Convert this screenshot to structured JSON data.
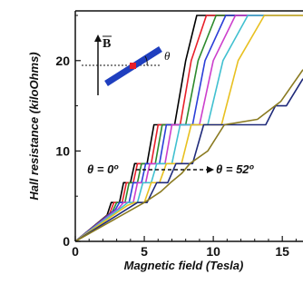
{
  "chart_data": {
    "type": "line",
    "xlabel": "Magnetic field (Tesla)",
    "ylabel": "Hall resistance (kiloOhms)",
    "xlim": [
      0,
      16.5
    ],
    "ylim": [
      0,
      25.5
    ],
    "x_ticks": [
      "0",
      "5",
      "10",
      "15"
    ],
    "y_ticks": [
      "0",
      "10",
      "20"
    ],
    "x_tick_values": [
      0,
      5,
      10,
      15
    ],
    "y_tick_values": [
      0,
      10,
      20
    ],
    "grid": false,
    "annotations": {
      "theta_start": "θ = 0º",
      "theta_end": "θ = 52º",
      "inset_field": "B",
      "inset_angle": "θ"
    },
    "series": [
      {
        "color": "#000000",
        "points": [
          [
            0,
            0
          ],
          [
            2.3,
            2.9
          ],
          [
            2.6,
            4.3
          ],
          [
            3.2,
            4.3
          ],
          [
            3.5,
            6.5
          ],
          [
            4.0,
            6.5
          ],
          [
            4.3,
            8.6
          ],
          [
            5.2,
            8.6
          ],
          [
            5.7,
            12.9
          ],
          [
            7.2,
            12.9
          ],
          [
            8.0,
            20.0
          ],
          [
            8.8,
            25.0
          ],
          [
            16.5,
            25.0
          ]
        ]
      },
      {
        "color": "#e8202a",
        "points": [
          [
            0,
            0
          ],
          [
            2.5,
            3.1
          ],
          [
            2.8,
            4.3
          ],
          [
            3.4,
            4.3
          ],
          [
            3.7,
            6.5
          ],
          [
            4.2,
            6.5
          ],
          [
            4.5,
            8.6
          ],
          [
            5.5,
            8.6
          ],
          [
            6.0,
            12.9
          ],
          [
            7.6,
            12.9
          ],
          [
            8.4,
            20.0
          ],
          [
            9.5,
            25.0
          ],
          [
            16.5,
            25.0
          ]
        ]
      },
      {
        "color": "#2d8a2d",
        "points": [
          [
            0,
            0
          ],
          [
            2.7,
            3.3
          ],
          [
            3.0,
            4.3
          ],
          [
            3.6,
            4.3
          ],
          [
            3.9,
            6.5
          ],
          [
            4.5,
            6.5
          ],
          [
            4.8,
            8.6
          ],
          [
            5.8,
            8.6
          ],
          [
            6.3,
            12.9
          ],
          [
            8.0,
            12.9
          ],
          [
            8.9,
            20.0
          ],
          [
            10.2,
            25.0
          ],
          [
            16.5,
            25.0
          ]
        ]
      },
      {
        "color": "#2b3fd8",
        "points": [
          [
            0,
            0
          ],
          [
            2.9,
            3.5
          ],
          [
            3.2,
            4.3
          ],
          [
            3.9,
            4.3
          ],
          [
            4.2,
            6.5
          ],
          [
            4.8,
            6.5
          ],
          [
            5.1,
            8.6
          ],
          [
            6.1,
            8.6
          ],
          [
            6.6,
            12.9
          ],
          [
            8.5,
            12.9
          ],
          [
            9.4,
            20.0
          ],
          [
            10.9,
            25.0
          ],
          [
            16.5,
            25.0
          ]
        ]
      },
      {
        "color": "#cc3fcc",
        "points": [
          [
            0,
            0
          ],
          [
            3.1,
            3.6
          ],
          [
            3.5,
            4.3
          ],
          [
            4.2,
            4.3
          ],
          [
            4.5,
            6.5
          ],
          [
            5.1,
            6.5
          ],
          [
            5.4,
            8.6
          ],
          [
            6.5,
            8.6
          ],
          [
            7.0,
            12.9
          ],
          [
            9.0,
            12.9
          ],
          [
            10.0,
            20.0
          ],
          [
            11.6,
            25.0
          ],
          [
            16.5,
            25.0
          ]
        ]
      },
      {
        "color": "#40c0d0",
        "points": [
          [
            0,
            0
          ],
          [
            3.4,
            3.8
          ],
          [
            3.8,
            4.3
          ],
          [
            4.5,
            4.3
          ],
          [
            4.9,
            6.5
          ],
          [
            5.5,
            6.5
          ],
          [
            5.9,
            8.6
          ],
          [
            7.0,
            8.6
          ],
          [
            7.6,
            12.9
          ],
          [
            9.6,
            12.9
          ],
          [
            10.7,
            20.0
          ],
          [
            12.5,
            25.0
          ],
          [
            16.5,
            25.0
          ]
        ]
      },
      {
        "color": "#e8c020",
        "points": [
          [
            0,
            0
          ],
          [
            3.8,
            4.0
          ],
          [
            4.3,
            4.3
          ],
          [
            5.0,
            4.3
          ],
          [
            5.5,
            6.5
          ],
          [
            6.1,
            6.5
          ],
          [
            6.6,
            8.6
          ],
          [
            7.7,
            8.6
          ],
          [
            8.4,
            12.9
          ],
          [
            10.6,
            12.9
          ],
          [
            11.8,
            20.0
          ],
          [
            13.7,
            25.0
          ],
          [
            16.5,
            25.0
          ]
        ]
      },
      {
        "color": "#1f2a7a",
        "points": [
          [
            0,
            0
          ],
          [
            4.5,
            4.3
          ],
          [
            5.2,
            4.3
          ],
          [
            5.9,
            6.5
          ],
          [
            6.7,
            6.5
          ],
          [
            7.3,
            8.6
          ],
          [
            8.5,
            8.6
          ],
          [
            9.3,
            12.9
          ],
          [
            13.8,
            12.9
          ],
          [
            14.5,
            15.0
          ],
          [
            15.3,
            15.0
          ],
          [
            16.5,
            18.0
          ]
        ]
      },
      {
        "color": "#8a7a20",
        "points": [
          [
            0,
            0
          ],
          [
            5.0,
            4.3
          ],
          [
            6.2,
            5.5
          ],
          [
            6.9,
            6.5
          ],
          [
            7.7,
            7.5
          ],
          [
            8.3,
            8.6
          ],
          [
            9.6,
            10.0
          ],
          [
            10.8,
            12.9
          ],
          [
            13.2,
            13.5
          ],
          [
            14.9,
            15.5
          ],
          [
            16.5,
            19.0
          ]
        ]
      }
    ]
  }
}
